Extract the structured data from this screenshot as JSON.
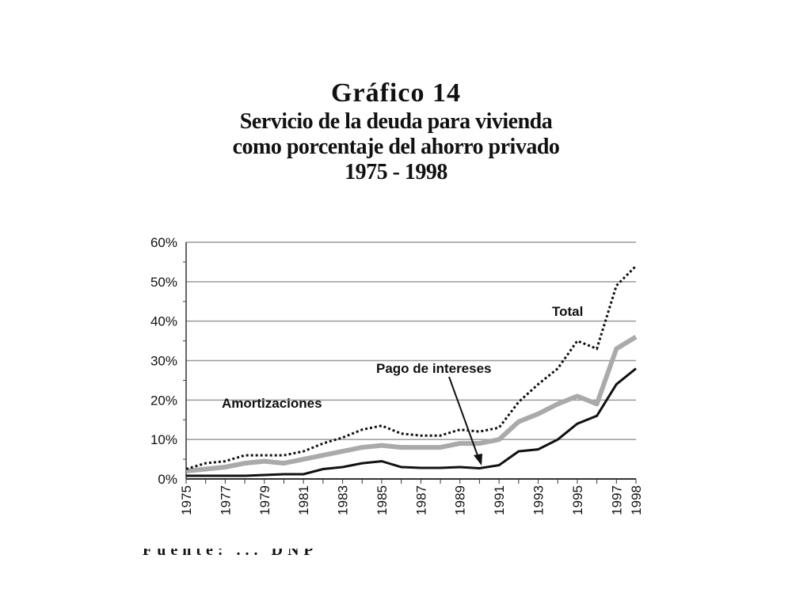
{
  "title": {
    "line1": "Gráfico  14",
    "line2": "Servicio de la deuda para vivienda",
    "line3": "como porcentaje del ahorro privado",
    "line4": "1975 - 1998"
  },
  "source_fragment": "Fuente: ... DNP",
  "colors": {
    "total": "#111111",
    "amortizaciones": "#aaaaaa",
    "intereses": "#111111",
    "grid": "#9a9a9a"
  },
  "chart_data": {
    "type": "line",
    "x": [
      1975,
      1976,
      1977,
      1978,
      1979,
      1980,
      1981,
      1982,
      1983,
      1984,
      1985,
      1986,
      1987,
      1988,
      1989,
      1990,
      1991,
      1992,
      1993,
      1994,
      1995,
      1996,
      1997,
      1998
    ],
    "xlim": [
      1975,
      1998
    ],
    "ylim": [
      0,
      60
    ],
    "y_ticks": [
      "0%",
      "10%",
      "20%",
      "30%",
      "40%",
      "50%",
      "60%"
    ],
    "x_ticks": [
      "1975",
      "1977",
      "1979",
      "1981",
      "1983",
      "1985",
      "1987",
      "1989",
      "1991",
      "1993",
      "1995",
      "1997",
      "1998"
    ],
    "grid": true,
    "series": [
      {
        "name": "Total",
        "style": "dotted",
        "values": [
          2.5,
          4,
          4.5,
          6,
          6,
          6,
          7,
          9,
          10.5,
          12.5,
          13.5,
          11.5,
          11,
          11,
          12.5,
          12,
          13,
          19.5,
          24,
          28,
          35,
          33,
          49,
          54
        ]
      },
      {
        "name": "Pago de intereses",
        "style": "solid-thin",
        "values": [
          0.8,
          0.8,
          0.8,
          0.8,
          1,
          1.2,
          1.2,
          2.5,
          3,
          4,
          4.5,
          3,
          2.8,
          2.8,
          3,
          2.7,
          3.5,
          7,
          7.5,
          10,
          14,
          16,
          24,
          28
        ]
      },
      {
        "name": "Amortizaciones",
        "style": "solid-thick",
        "values": [
          2,
          2.5,
          3,
          4,
          4.5,
          4,
          5,
          6,
          7,
          8,
          8.5,
          8,
          8,
          8,
          9,
          9,
          10,
          14.5,
          16.5,
          19,
          21,
          19,
          33,
          36
        ]
      }
    ],
    "annotations": [
      {
        "text": "Total",
        "series": "Total"
      },
      {
        "text": "Pago de intereses",
        "series": "Pago de intereses",
        "arrow_to_year": 1991,
        "arrow_to_value": 4
      },
      {
        "text": "Amortizaciones",
        "series": "Amortizaciones"
      }
    ]
  }
}
